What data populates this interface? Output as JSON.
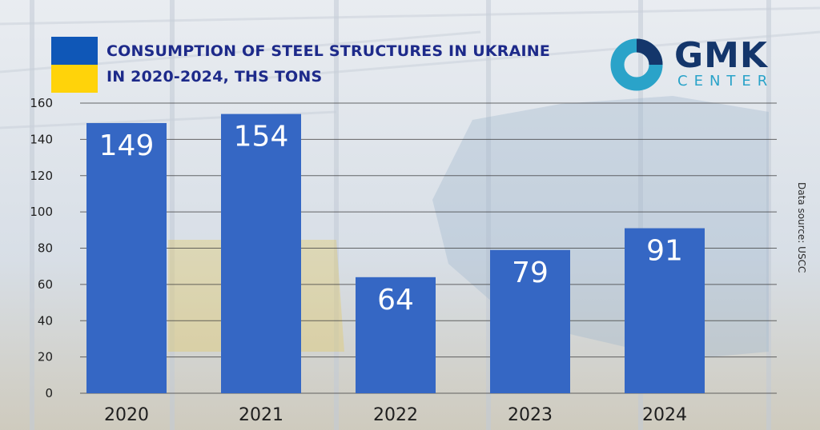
{
  "header": {
    "title_line1": "CONSUMPTION OF STEEL STRUCTURES IN UKRAINE",
    "title_line2": "IN 2020-2024, THS TONS"
  },
  "logo": {
    "main": "GMK",
    "sub": "CENTER"
  },
  "source": "Data source: USCC",
  "colors": {
    "bar": "#3567c4",
    "title": "#1d2a8a",
    "flag_blue": "#0f57b7",
    "flag_yellow": "#ffd30a"
  },
  "chart_data": {
    "type": "bar",
    "title": "CONSUMPTION OF STEEL STRUCTURES IN UKRAINE IN 2020-2024, THS TONS",
    "categories": [
      "2020",
      "2021",
      "2022",
      "2023",
      "2024"
    ],
    "values": [
      149,
      154,
      64,
      79,
      91
    ],
    "data_labels": [
      "149",
      "154",
      "64",
      "79",
      "91"
    ],
    "ylim": [
      0,
      160
    ],
    "yticks": [
      0,
      20,
      40,
      60,
      80,
      100,
      120,
      140,
      160
    ],
    "grid": true,
    "xlabel": "",
    "ylabel": ""
  }
}
